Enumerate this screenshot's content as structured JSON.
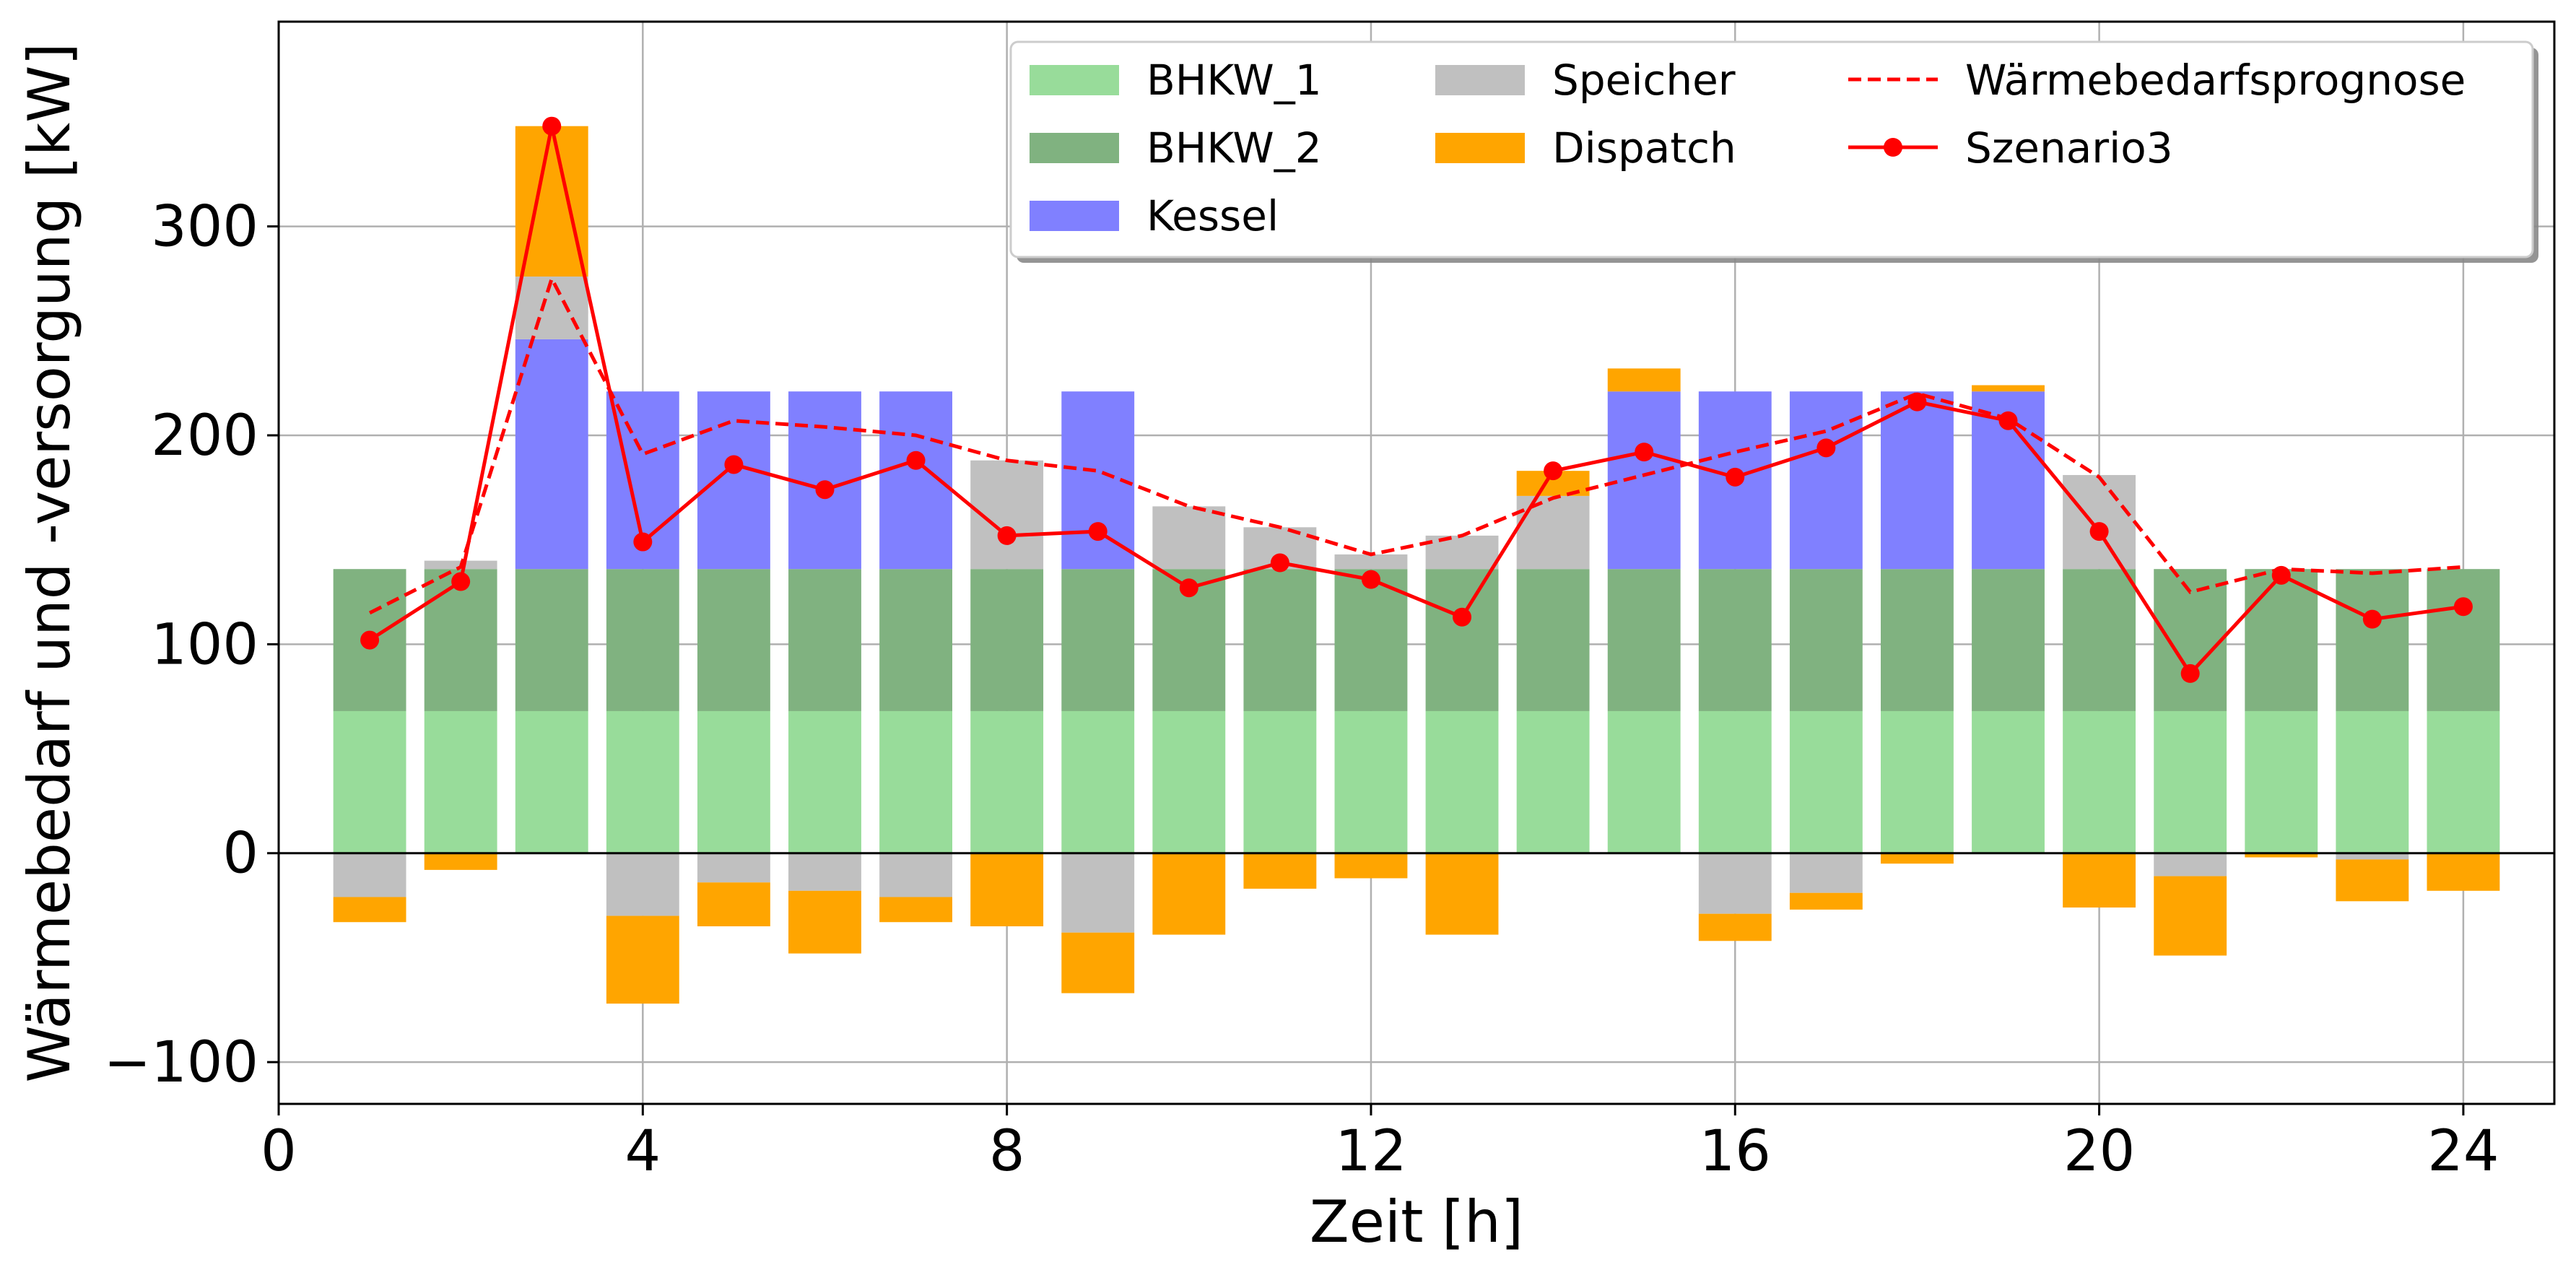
{
  "chart_data": {
    "type": "bar",
    "xlabel": "Zeit [h]",
    "ylabel": "Wärmebedarf und -versorgung [kW]",
    "xlim": [
      0,
      25
    ],
    "ylim": [
      -120,
      398
    ],
    "xticks": [
      0,
      4,
      8,
      12,
      16,
      20,
      24
    ],
    "xtick_labels": [
      "0",
      "4",
      "8",
      "12",
      "16",
      "20",
      "24"
    ],
    "yticks": [
      -100,
      0,
      100,
      200,
      300
    ],
    "ytick_labels": [
      "−100",
      "0",
      "100",
      "200",
      "300"
    ],
    "grid": true,
    "legend_position": "upper-right",
    "x": [
      1,
      2,
      3,
      4,
      5,
      6,
      7,
      8,
      9,
      10,
      11,
      12,
      13,
      14,
      15,
      16,
      17,
      18,
      19,
      20,
      21,
      22,
      23,
      24
    ],
    "bar_series": [
      {
        "name": "BHKW_1",
        "color": "#98dc9a",
        "values": [
          68,
          68,
          68,
          68,
          68,
          68,
          68,
          68,
          68,
          68,
          68,
          68,
          68,
          68,
          68,
          68,
          68,
          68,
          68,
          68,
          68,
          68,
          68,
          68
        ]
      },
      {
        "name": "BHKW_2",
        "color": "#80b280",
        "values": [
          68,
          68,
          68,
          68,
          68,
          68,
          68,
          68,
          68,
          68,
          68,
          68,
          68,
          68,
          68,
          68,
          68,
          68,
          68,
          68,
          68,
          68,
          68,
          68
        ]
      },
      {
        "name": "Kessel",
        "color": "#8080ff",
        "values": [
          0,
          0,
          110,
          85,
          85,
          85,
          85,
          0,
          85,
          0,
          0,
          0,
          0,
          0,
          85,
          85,
          85,
          85,
          85,
          0,
          0,
          0,
          0,
          0
        ]
      },
      {
        "name": "Speicher",
        "color": "#c0c0c0",
        "values": [
          -21,
          4,
          30,
          -30,
          -14,
          -18,
          -21,
          52,
          -38,
          30,
          20,
          7,
          16,
          35,
          0,
          -29,
          -19,
          0,
          0,
          45,
          -11,
          0,
          -3,
          0
        ]
      },
      {
        "name": "Dispatch",
        "color": "#ffa500",
        "values": [
          -12,
          -8,
          72,
          -42,
          -21,
          -30,
          -12,
          -35,
          -29,
          -39,
          -17,
          -12,
          -39,
          12,
          11,
          -13,
          -8,
          -5,
          3,
          -26,
          -38,
          -2,
          -20,
          -18
        ]
      }
    ],
    "line_series": [
      {
        "name": "Wärmebedarfsprognose",
        "color": "#ff0000",
        "style": "dashed",
        "values": [
          115,
          137,
          275,
          191,
          207,
          204,
          200,
          188,
          183,
          166,
          156,
          143,
          152,
          170,
          181,
          192,
          202,
          220,
          208,
          180,
          125,
          136,
          134,
          137
        ]
      },
      {
        "name": "Szenario3",
        "color": "#ff0000",
        "style": "solid-marker",
        "values": [
          102,
          130,
          348,
          149,
          186,
          174,
          188,
          152,
          154,
          127,
          139,
          131,
          113,
          183,
          192,
          180,
          194,
          216,
          207,
          154,
          86,
          133,
          112,
          118
        ]
      }
    ]
  }
}
